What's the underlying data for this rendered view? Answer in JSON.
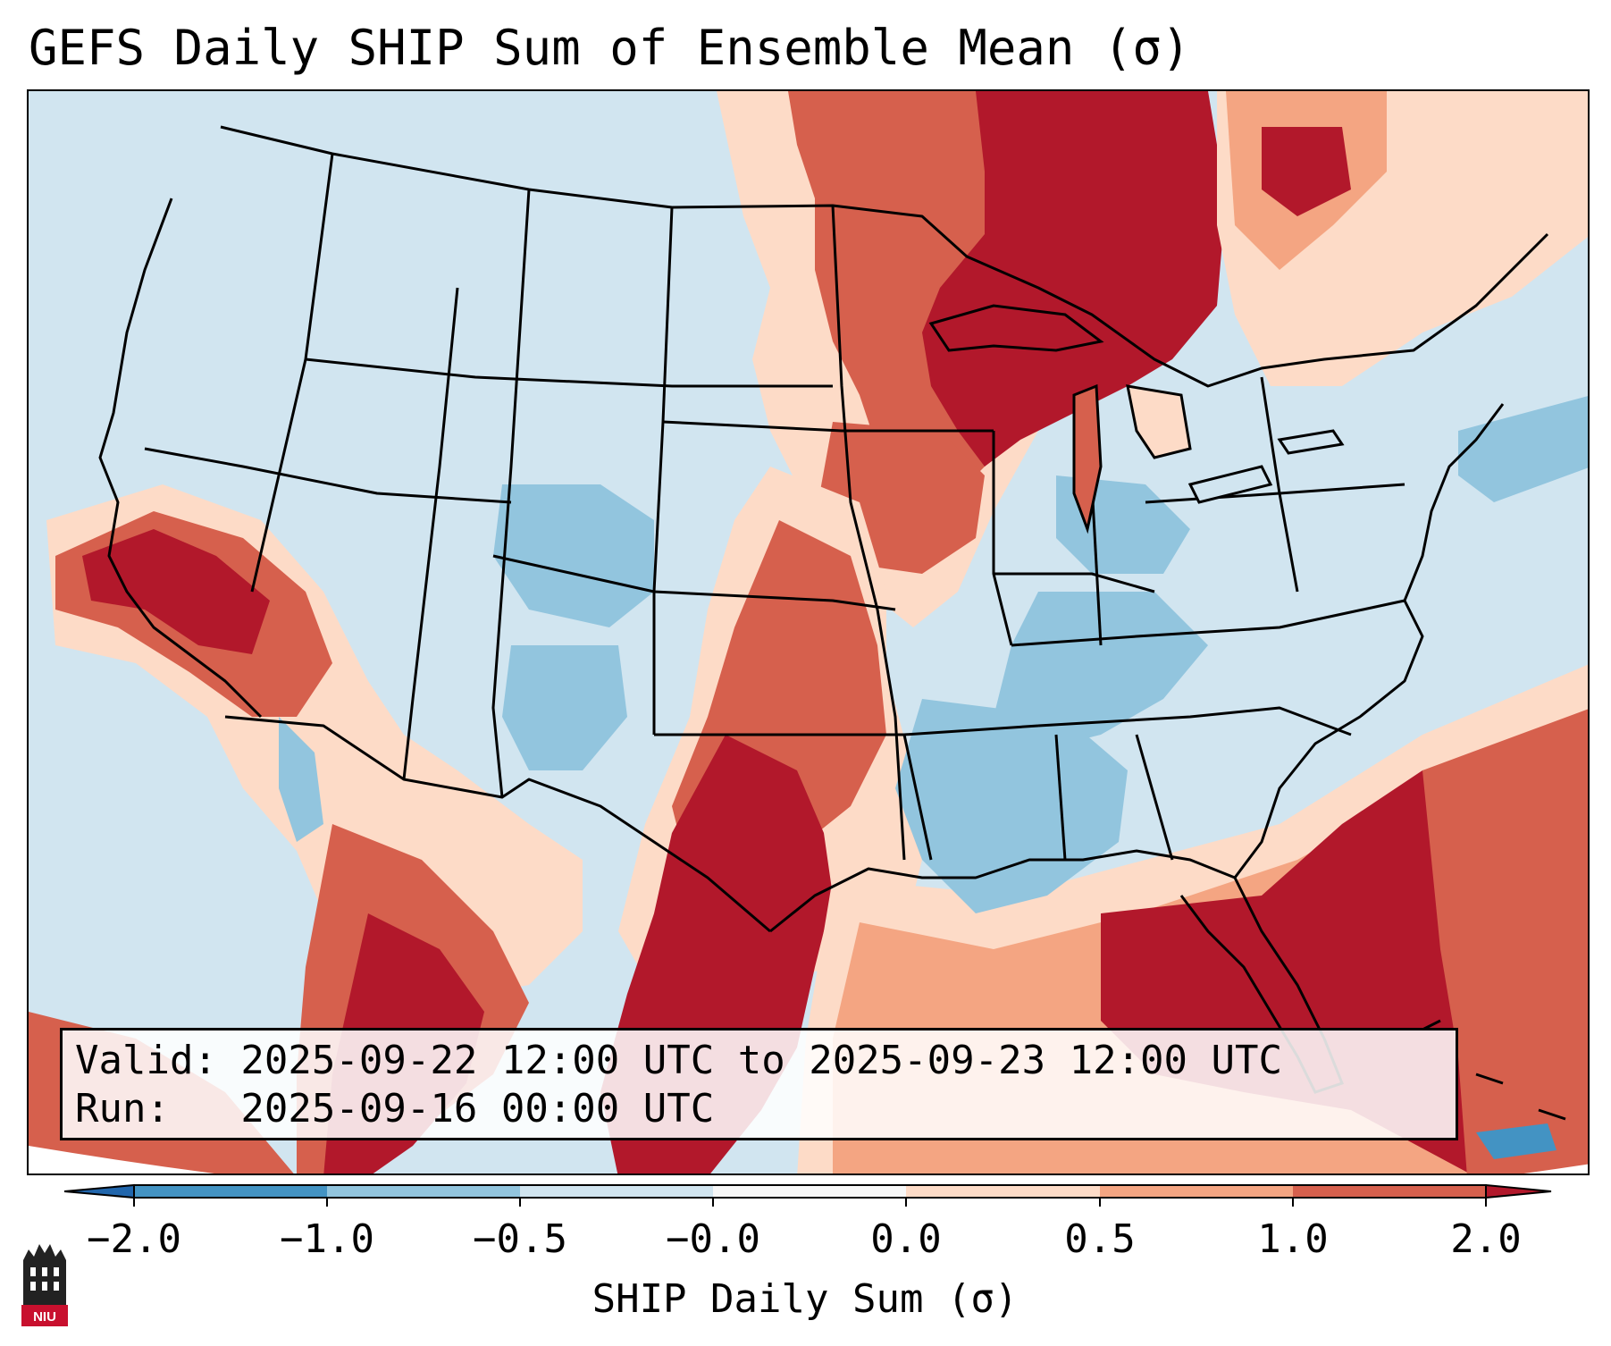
{
  "title": "GEFS Daily SHIP Sum of Ensemble Mean (σ)",
  "info": {
    "valid": "Valid: 2025-09-22 12:00 UTC to 2025-09-23 12:00 UTC",
    "run": "Run:   2025-09-16 00:00 UTC"
  },
  "colorbar": {
    "label": "SHIP Daily Sum (σ)",
    "ticks": [
      "−2.0",
      "−1.0",
      "−0.5",
      "−0.0",
      "0.0",
      "0.5",
      "1.0",
      "2.0"
    ],
    "colors": [
      "#2166ac",
      "#4393c3",
      "#92c5de",
      "#d1e5f0",
      "#f7f7f7",
      "#fddbc7",
      "#f4a582",
      "#d6604d",
      "#b2182b"
    ]
  },
  "map": {
    "region": "Contiguous United States",
    "features": [
      "state-borders",
      "coastlines",
      "shaded-anomaly-field"
    ]
  },
  "logo": {
    "text": "NIU",
    "icon": "niu-tower-logo"
  }
}
